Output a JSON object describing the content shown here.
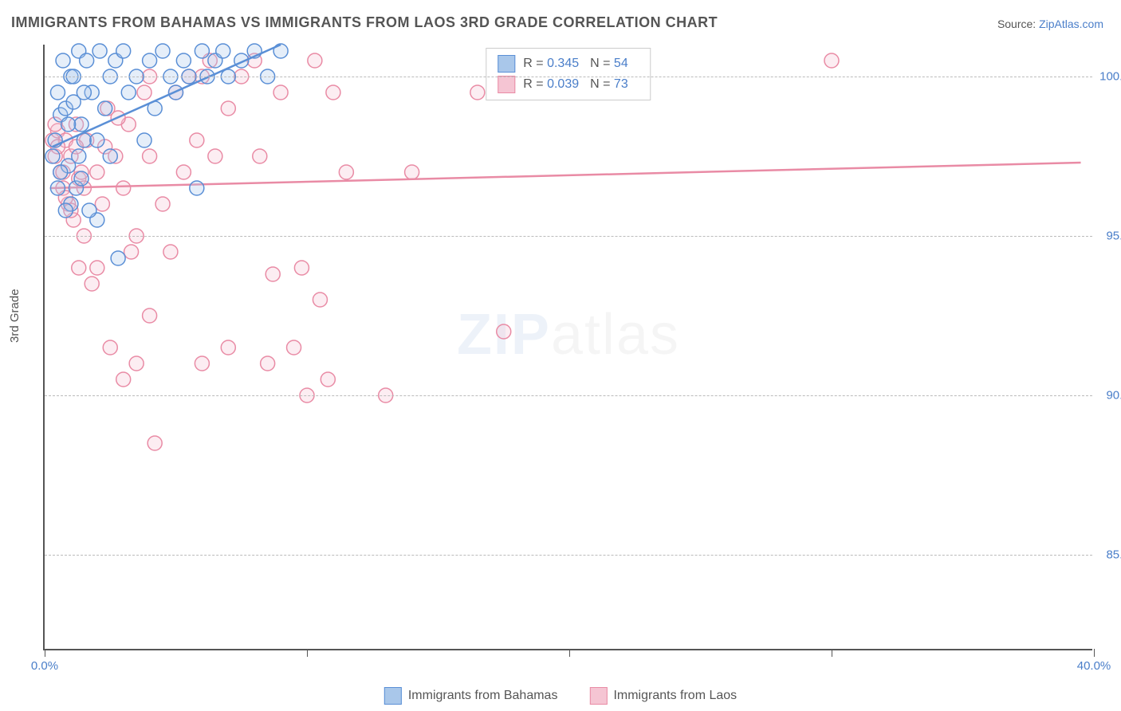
{
  "title": "IMMIGRANTS FROM BAHAMAS VS IMMIGRANTS FROM LAOS 3RD GRADE CORRELATION CHART",
  "source": {
    "label": "Source: ",
    "link": "ZipAtlas.com"
  },
  "y_axis_label": "3rd Grade",
  "watermark": {
    "bold": "ZIP",
    "light": "atlas"
  },
  "chart": {
    "type": "scatter",
    "xlim": [
      0,
      40
    ],
    "ylim": [
      82,
      101
    ],
    "x_ticks": [
      0,
      10,
      20,
      30,
      40
    ],
    "x_tick_labels": [
      "0.0%",
      "",
      "",
      "",
      "40.0%"
    ],
    "y_ticks": [
      85,
      90,
      95,
      100
    ],
    "y_tick_labels": [
      "85.0%",
      "90.0%",
      "95.0%",
      "100.0%"
    ],
    "grid_color": "#bbbbbb",
    "axis_color": "#555555",
    "background_color": "#ffffff",
    "marker_radius": 9,
    "marker_fill_opacity": 0.3,
    "marker_stroke_width": 1.5,
    "line_width": 2.5,
    "series": {
      "bahamas": {
        "label": "Immigrants from Bahamas",
        "color_stroke": "#5a8fd6",
        "color_fill": "#a9c7ea",
        "R": "0.345",
        "N": "54",
        "trend": {
          "x1": 0.3,
          "y1": 97.8,
          "x2": 9.0,
          "y2": 101.0
        },
        "points": [
          [
            0.3,
            97.5
          ],
          [
            0.4,
            98.0
          ],
          [
            0.5,
            99.5
          ],
          [
            0.6,
            98.8
          ],
          [
            0.7,
            100.5
          ],
          [
            0.8,
            99.0
          ],
          [
            0.9,
            97.2
          ],
          [
            1.0,
            100.0
          ],
          [
            1.1,
            99.2
          ],
          [
            1.2,
            96.5
          ],
          [
            1.3,
            100.8
          ],
          [
            1.4,
            98.5
          ],
          [
            1.5,
            98.0
          ],
          [
            1.6,
            100.5
          ],
          [
            1.8,
            99.5
          ],
          [
            2.0,
            95.5
          ],
          [
            2.1,
            100.8
          ],
          [
            2.3,
            99.0
          ],
          [
            2.5,
            100.0
          ],
          [
            2.7,
            100.5
          ],
          [
            2.8,
            94.3
          ],
          [
            3.0,
            100.8
          ],
          [
            3.2,
            99.5
          ],
          [
            3.5,
            100.0
          ],
          [
            3.8,
            98.0
          ],
          [
            4.0,
            100.5
          ],
          [
            4.2,
            99.0
          ],
          [
            4.5,
            100.8
          ],
          [
            4.8,
            100.0
          ],
          [
            5.0,
            99.5
          ],
          [
            5.3,
            100.5
          ],
          [
            5.5,
            100.0
          ],
          [
            5.8,
            96.5
          ],
          [
            6.0,
            100.8
          ],
          [
            6.2,
            100.0
          ],
          [
            6.5,
            100.5
          ],
          [
            6.8,
            100.8
          ],
          [
            7.0,
            100.0
          ],
          [
            7.5,
            100.5
          ],
          [
            8.0,
            100.8
          ],
          [
            8.5,
            100.0
          ],
          [
            9.0,
            100.8
          ],
          [
            0.6,
            97.0
          ],
          [
            0.9,
            98.5
          ],
          [
            1.1,
            100.0
          ],
          [
            1.3,
            97.5
          ],
          [
            1.5,
            99.5
          ],
          [
            2.0,
            98.0
          ],
          [
            2.5,
            97.5
          ],
          [
            1.7,
            95.8
          ],
          [
            1.0,
            96.0
          ],
          [
            1.4,
            96.8
          ],
          [
            0.5,
            96.5
          ],
          [
            0.8,
            95.8
          ]
        ]
      },
      "laos": {
        "label": "Immigrants from Laos",
        "color_stroke": "#e98ba5",
        "color_fill": "#f5c5d3",
        "R": "0.039",
        "N": "73",
        "trend": {
          "x1": 0.2,
          "y1": 96.5,
          "x2": 39.5,
          "y2": 97.3
        },
        "points": [
          [
            0.3,
            98.0
          ],
          [
            0.4,
            97.5
          ],
          [
            0.5,
            98.3
          ],
          [
            0.6,
            97.0
          ],
          [
            0.7,
            96.5
          ],
          [
            0.8,
            98.0
          ],
          [
            0.9,
            96.0
          ],
          [
            1.0,
            97.5
          ],
          [
            1.1,
            95.5
          ],
          [
            1.2,
            98.5
          ],
          [
            1.3,
            96.8
          ],
          [
            1.4,
            97.0
          ],
          [
            1.5,
            95.0
          ],
          [
            1.6,
            98.0
          ],
          [
            1.8,
            93.5
          ],
          [
            2.0,
            97.0
          ],
          [
            2.2,
            96.0
          ],
          [
            2.4,
            99.0
          ],
          [
            2.5,
            91.5
          ],
          [
            2.7,
            97.5
          ],
          [
            3.0,
            90.5
          ],
          [
            3.0,
            96.5
          ],
          [
            3.2,
            98.5
          ],
          [
            3.5,
            91.0
          ],
          [
            3.5,
            95.0
          ],
          [
            3.8,
            99.5
          ],
          [
            4.0,
            97.5
          ],
          [
            4.2,
            88.5
          ],
          [
            4.5,
            96.0
          ],
          [
            4.8,
            94.5
          ],
          [
            5.0,
            99.5
          ],
          [
            5.3,
            97.0
          ],
          [
            5.5,
            100.0
          ],
          [
            5.8,
            98.0
          ],
          [
            6.0,
            91.0
          ],
          [
            6.3,
            100.5
          ],
          [
            6.5,
            97.5
          ],
          [
            7.0,
            91.5
          ],
          [
            7.0,
            99.0
          ],
          [
            7.5,
            100.0
          ],
          [
            8.0,
            100.5
          ],
          [
            8.2,
            97.5
          ],
          [
            8.5,
            91.0
          ],
          [
            8.7,
            93.8
          ],
          [
            9.0,
            99.5
          ],
          [
            9.5,
            91.5
          ],
          [
            9.8,
            94.0
          ],
          [
            10.0,
            90.0
          ],
          [
            10.3,
            100.5
          ],
          [
            10.5,
            93.0
          ],
          [
            10.8,
            90.5
          ],
          [
            11.0,
            99.5
          ],
          [
            11.5,
            97.0
          ],
          [
            13.0,
            90.0
          ],
          [
            14.0,
            97.0
          ],
          [
            16.5,
            99.5
          ],
          [
            17.5,
            92.0
          ],
          [
            30.0,
            100.5
          ],
          [
            0.4,
            98.5
          ],
          [
            0.5,
            97.8
          ],
          [
            0.7,
            97.0
          ],
          [
            0.8,
            96.2
          ],
          [
            1.0,
            95.8
          ],
          [
            1.2,
            97.8
          ],
          [
            1.3,
            94.0
          ],
          [
            1.5,
            96.5
          ],
          [
            2.0,
            94.0
          ],
          [
            2.3,
            97.8
          ],
          [
            2.8,
            98.7
          ],
          [
            3.3,
            94.5
          ],
          [
            4.0,
            92.5
          ],
          [
            4.0,
            100.0
          ],
          [
            6.0,
            100.0
          ]
        ]
      }
    }
  },
  "legend_bottom": [
    {
      "key": "bahamas",
      "label": "Immigrants from Bahamas"
    },
    {
      "key": "laos",
      "label": "Immigrants from Laos"
    }
  ]
}
